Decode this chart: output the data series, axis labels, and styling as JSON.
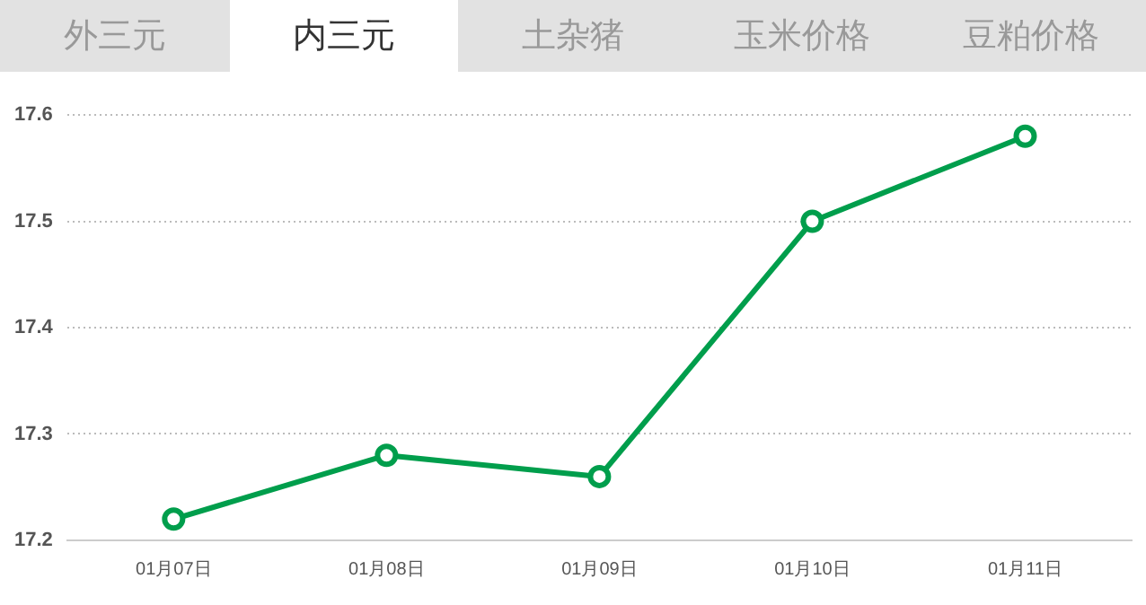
{
  "chart_data": {
    "type": "line",
    "annotations": [
      "外三元",
      "内三元",
      "土杂猪",
      "玉米价格",
      "豆粕价格"
    ],
    "categories": [
      "01月07日",
      "01月08日",
      "01月09日",
      "01月10日",
      "01月11日"
    ],
    "series": [
      {
        "color": "#009e4c",
        "values": [
          17.22,
          17.28,
          17.26,
          17.5,
          17.58
        ]
      }
    ],
    "ylim": [
      17.2,
      17.6
    ],
    "yticks": [
      17.2,
      17.3,
      17.4,
      17.5,
      17.6
    ],
    "grid": "y",
    "marker": "circle",
    "line_style": "solid",
    "legend": false
  }
}
